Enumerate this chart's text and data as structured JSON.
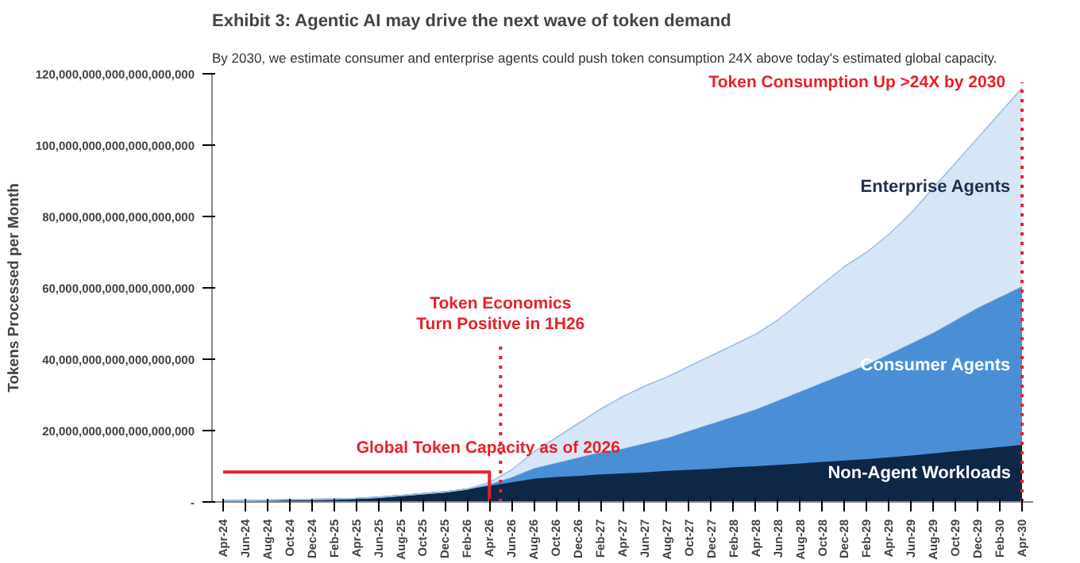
{
  "chart_data": {
    "type": "area",
    "stacked": true,
    "title": "Exhibit 3: Agentic AI may drive the next wave of token demand",
    "subtitle": "By 2030, we estimate consumer and enterprise agents could push token consumption 24X above today's estimated global capacity.",
    "ylabel": "Tokens Processed per Month",
    "x": [
      "2024-04",
      "2024-06",
      "2024-08",
      "2024-10",
      "2024-12",
      "2025-02",
      "2025-04",
      "2025-06",
      "2025-08",
      "2025-10",
      "2025-12",
      "2026-02",
      "2026-04",
      "2026-06",
      "2026-08",
      "2026-10",
      "2026-12",
      "2027-02",
      "2027-04",
      "2027-06",
      "2027-08",
      "2027-10",
      "2027-12",
      "2028-02",
      "2028-04",
      "2028-06",
      "2028-08",
      "2028-10",
      "2028-12",
      "2029-02",
      "2029-04",
      "2029-06",
      "2029-08",
      "2029-10",
      "2029-12",
      "2030-02",
      "2030-04"
    ],
    "series": [
      {
        "name": "Non-Agent Workloads",
        "color": "#0f2747",
        "values": [
          3e+17,
          4e+17,
          5e+17,
          6e+17,
          7e+17,
          8e+17,
          1e+18,
          1.3e+18,
          1.8e+18,
          2.3e+18,
          2.8e+18,
          3.6e+18,
          4.5e+18,
          5.5e+18,
          6.5e+18,
          7e+18,
          7.3e+18,
          7.7e+18,
          8e+18,
          8.3e+18,
          8.7e+18,
          9e+18,
          9.3e+18,
          9.7e+18,
          1e+19,
          1.04e+19,
          1.08e+19,
          1.12e+19,
          1.16e+19,
          1.2e+19,
          1.25e+19,
          1.3e+19,
          1.36e+19,
          1.42e+19,
          1.48e+19,
          1.54e+19,
          1.6e+19
        ]
      },
      {
        "name": "Consumer Agents",
        "color": "#4a8fd6",
        "values": [
          0,
          0,
          0,
          0,
          0,
          0,
          0,
          0,
          0,
          0,
          0,
          0,
          5e+17,
          1.5e+18,
          3e+18,
          4e+18,
          5.2e+18,
          6.3e+18,
          7e+18,
          8.2e+18,
          9.3e+18,
          1.1e+19,
          1.27e+19,
          1.43e+19,
          1.6e+19,
          1.81e+19,
          2.02e+19,
          2.23e+19,
          2.44e+19,
          2.65e+19,
          2.9e+19,
          3.15e+19,
          3.39e+19,
          3.68e+19,
          3.97e+19,
          4.21e+19,
          4.45e+19
        ]
      },
      {
        "name": "Enterprise Agents",
        "color": "#d6e6f7",
        "values": [
          0,
          0,
          0,
          0,
          0,
          0,
          0,
          0,
          0,
          0,
          0,
          0,
          5e+17,
          2e+18,
          4.5e+18,
          7e+18,
          9.5e+18,
          1.2e+19,
          1.45e+19,
          1.6e+19,
          1.7e+19,
          1.8e+19,
          1.9e+19,
          2e+19,
          2.1e+19,
          2.25e+19,
          2.5e+19,
          2.75e+19,
          3e+19,
          3.15e+19,
          3.35e+19,
          3.65e+19,
          4.05e+19,
          4.4e+19,
          4.75e+19,
          5.15e+19,
          5.55e+19
        ]
      },
      {
        "type": "line",
        "color": "#e8202a",
        "x": [
          "2024-04",
          "2026-04",
          "2026-04"
        ],
        "values": [
          8.4e+18,
          8.4e+18,
          0
        ]
      }
    ],
    "ref_lines": [
      {
        "axis": "x",
        "value": "2026-05",
        "label": "Token Economics\nTurn Positive in 1H26",
        "color": "#e8202a",
        "line_style": "dotted"
      },
      {
        "axis": "x",
        "value": "2030-04",
        "label": "Token Consumption Up >24X by 2030",
        "color": "#e8202a",
        "line_style": "dotted"
      }
    ],
    "annotations": [
      {
        "text": "Global Token Capacity as of 2026",
        "x": "2025-04",
        "y": 8.4e+18
      }
    ],
    "xlim": [
      "2024-03",
      "2030-05"
    ],
    "xticks": [
      {
        "value": "2024-04",
        "label": "Apr-24"
      },
      {
        "value": "2024-06",
        "label": "Jun-24"
      },
      {
        "value": "2024-08",
        "label": "Aug-24"
      },
      {
        "value": "2024-10",
        "label": "Oct-24"
      },
      {
        "value": "2024-12",
        "label": "Dec-24"
      },
      {
        "value": "2025-02",
        "label": "Feb-25"
      },
      {
        "value": "2025-04",
        "label": "Apr-25"
      },
      {
        "value": "2025-06",
        "label": "Jun-25"
      },
      {
        "value": "2025-08",
        "label": "Aug-25"
      },
      {
        "value": "2025-10",
        "label": "Oct-25"
      },
      {
        "value": "2025-12",
        "label": "Dec-25"
      },
      {
        "value": "2026-02",
        "label": "Feb-26"
      },
      {
        "value": "2026-04",
        "label": "Apr-26"
      },
      {
        "value": "2026-06",
        "label": "Jun-26"
      },
      {
        "value": "2026-08",
        "label": "Aug-26"
      },
      {
        "value": "2026-10",
        "label": "Oct-26"
      },
      {
        "value": "2026-12",
        "label": "Dec-26"
      },
      {
        "value": "2027-02",
        "label": "Feb-27"
      },
      {
        "value": "2027-04",
        "label": "Apr-27"
      },
      {
        "value": "2027-06",
        "label": "Jun-27"
      },
      {
        "value": "2027-08",
        "label": "Aug-27"
      },
      {
        "value": "2027-10",
        "label": "Oct-27"
      },
      {
        "value": "2027-12",
        "label": "Dec-27"
      },
      {
        "value": "2028-02",
        "label": "Feb-28"
      },
      {
        "value": "2028-04",
        "label": "Apr-28"
      },
      {
        "value": "2028-06",
        "label": "Jun-28"
      },
      {
        "value": "2028-08",
        "label": "Aug-28"
      },
      {
        "value": "2028-10",
        "label": "Oct-28"
      },
      {
        "value": "2028-12",
        "label": "Dec-28"
      },
      {
        "value": "2029-02",
        "label": "Feb-29"
      },
      {
        "value": "2029-04",
        "label": "Apr-29"
      },
      {
        "value": "2029-06",
        "label": "Jun-29"
      },
      {
        "value": "2029-08",
        "label": "Aug-29"
      },
      {
        "value": "2029-10",
        "label": "Oct-29"
      },
      {
        "value": "2029-12",
        "label": "Dec-29"
      },
      {
        "value": "2030-02",
        "label": "Feb-30"
      },
      {
        "value": "2030-04",
        "label": "Apr-30"
      }
    ],
    "ylim": [
      0,
      1.2e+20
    ],
    "yticks": [
      {
        "value": 0,
        "label": "-"
      },
      {
        "value": 2e+19,
        "label": "20,000,000,000,000,000,000"
      },
      {
        "value": 4e+19,
        "label": "40,000,000,000,000,000,000"
      },
      {
        "value": 6e+19,
        "label": "60,000,000,000,000,000,000"
      },
      {
        "value": 8e+19,
        "label": "80,000,000,000,000,000,000"
      },
      {
        "value": 1e+20,
        "label": "100,000,000,000,000,000,000"
      },
      {
        "value": 1.2e+20,
        "label": "120,000,000,000,000,000,000"
      }
    ],
    "grid": false
  }
}
